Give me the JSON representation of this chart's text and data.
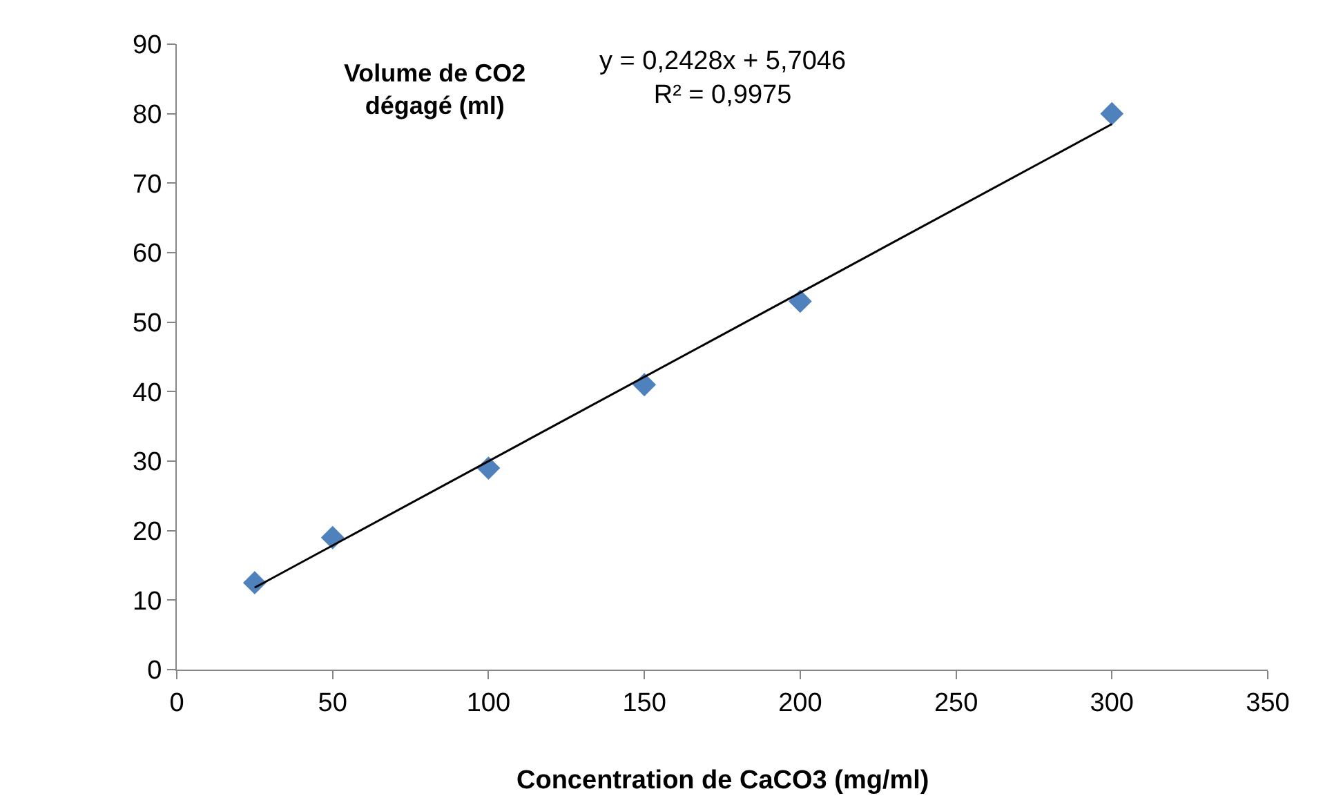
{
  "chart_data": {
    "type": "scatter",
    "xlabel": "Concentration de CaCO3 (mg/ml)",
    "ylabel": "Volume de CO2\ndégagé (ml)",
    "x": [
      25,
      50,
      100,
      150,
      200,
      300
    ],
    "series": [
      {
        "color": "#4f81bd",
        "values": [
          12.5,
          19,
          29,
          41,
          53,
          80
        ],
        "marker": "diamond"
      },
      {
        "type": "line",
        "color": "#000000",
        "x": [
          25,
          300
        ],
        "values": [
          11.8,
          78.5
        ],
        "marker": "none",
        "line_style": "solid"
      }
    ],
    "annotations": [
      "y = 0,2428x + 5,7046\nR² = 0,9975"
    ],
    "xlim": [
      0,
      350
    ],
    "xticks": [
      0,
      50,
      100,
      150,
      200,
      250,
      300,
      350
    ],
    "ylim": [
      0,
      90
    ],
    "yticks": [
      0,
      10,
      20,
      30,
      40,
      50,
      60,
      70,
      80,
      90
    ],
    "grid": false,
    "legend": false
  }
}
